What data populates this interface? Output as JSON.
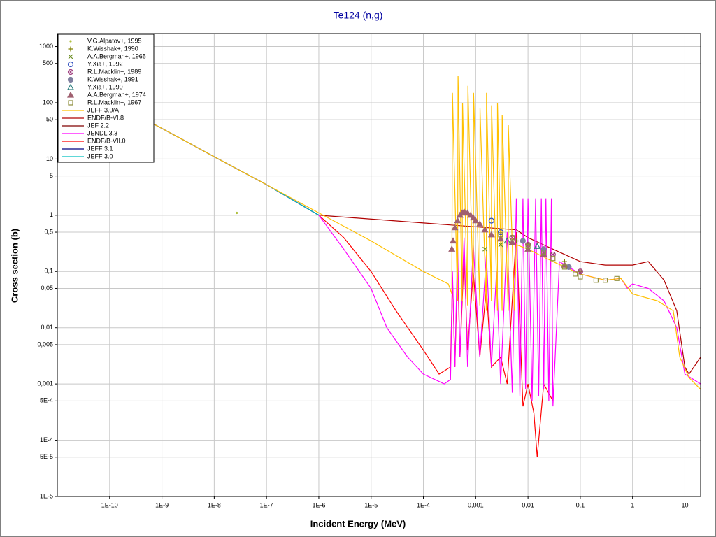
{
  "chart_data": {
    "type": "line",
    "title": "Te124 (n,g)",
    "x_label": "Incident Energy (MeV)",
    "y_label": "Cross section (b)",
    "xscale": "log",
    "yscale": "log",
    "grid": true,
    "legend": "upper left",
    "xlim": [
      1e-11,
      20
    ],
    "ylim": [
      1e-05,
      1700
    ],
    "xticks": [
      {
        "value": 1e-10,
        "label": "1E-10"
      },
      {
        "value": 1e-09,
        "label": "1E-9"
      },
      {
        "value": 1e-08,
        "label": "1E-8"
      },
      {
        "value": 1e-07,
        "label": "1E-7"
      },
      {
        "value": 1e-06,
        "label": "1E-6"
      },
      {
        "value": 1e-05,
        "label": "1E-5"
      },
      {
        "value": 0.0001,
        "label": "1E-4"
      },
      {
        "value": 0.001,
        "label": "0,001"
      },
      {
        "value": 0.01,
        "label": "0,01"
      },
      {
        "value": 0.1,
        "label": "0,1"
      },
      1,
      10
    ],
    "yticks": [
      1000,
      500,
      100,
      50,
      10,
      5,
      1,
      {
        "value": 0.5,
        "label": "0,5"
      },
      {
        "value": 0.1,
        "label": "0,1"
      },
      {
        "value": 0.05,
        "label": "0,05"
      },
      {
        "value": 0.01,
        "label": "0,01"
      },
      {
        "value": 0.005,
        "label": "0,005"
      },
      {
        "value": 0.001,
        "label": "0,001"
      },
      {
        "value": 0.0005,
        "label": "5E-4"
      },
      {
        "value": 0.0001,
        "label": "1E-4"
      },
      {
        "value": 5e-05,
        "label": "5E-5"
      },
      {
        "value": 1e-05,
        "label": "1E-5"
      }
    ],
    "series": [
      {
        "name": "V.G.Alpatov+, 1995",
        "color": "#b0c040",
        "marker": "dot",
        "x": [
          2.7e-08
        ],
        "values": [
          1.1
        ]
      },
      {
        "name": "K.Wisshak+, 1990",
        "color": "#808000",
        "marker": "plus",
        "x": [
          0.006,
          0.01,
          0.02,
          0.05,
          0.1
        ],
        "values": [
          0.35,
          0.3,
          0.25,
          0.15,
          0.1
        ]
      },
      {
        "name": "A.A.Bergman+, 1965",
        "color": "#6b8e23",
        "marker": "cross",
        "x": [
          0.0015,
          0.003,
          0.01,
          0.03
        ],
        "values": [
          0.25,
          0.3,
          0.3,
          0.2
        ]
      },
      {
        "name": "Y.Xia+, 1992",
        "color": "#3050c0",
        "marker": "circle",
        "x": [
          0.002,
          0.003
        ],
        "values": [
          0.8,
          0.5
        ]
      },
      {
        "name": "R.L.Macklin+, 1989",
        "color": "#a04080",
        "marker": "circle-x",
        "x": [
          0.005,
          0.01,
          0.03,
          0.1
        ],
        "values": [
          0.4,
          0.3,
          0.2,
          0.1
        ]
      },
      {
        "name": "K.Wisshak+, 1991",
        "color": "#8080a0",
        "marker": "filled-circle",
        "x": [
          0.008,
          0.02,
          0.06
        ],
        "values": [
          0.35,
          0.25,
          0.12
        ]
      },
      {
        "name": "Y.Xia+, 1990",
        "color": "#308080",
        "marker": "triangle",
        "x": [
          0.004,
          0.015
        ],
        "values": [
          0.35,
          0.28
        ]
      },
      {
        "name": "A.A.Bergman+, 1974",
        "color": "#a06070",
        "marker": "filled-triangle",
        "x": [
          0.00035,
          0.00037,
          0.0004,
          0.00045,
          0.0005,
          0.00055,
          0.0006,
          0.0007,
          0.0008,
          0.0009,
          0.001,
          0.0012,
          0.0015,
          0.002,
          0.003,
          0.005,
          0.01,
          0.02,
          0.05
        ],
        "values": [
          0.25,
          0.35,
          0.6,
          0.8,
          1.0,
          1.1,
          1.15,
          1.1,
          1.0,
          0.9,
          0.8,
          0.7,
          0.55,
          0.45,
          0.38,
          0.33,
          0.25,
          0.2,
          0.13
        ]
      },
      {
        "name": "R.L.Macklin+, 1967",
        "color": "#909040",
        "marker": "square",
        "x": [
          0.003,
          0.005,
          0.01,
          0.02,
          0.03,
          0.05,
          0.08,
          0.1,
          0.2,
          0.3,
          0.5
        ],
        "values": [
          0.45,
          0.4,
          0.28,
          0.22,
          0.17,
          0.12,
          0.09,
          0.08,
          0.07,
          0.07,
          0.075
        ]
      },
      {
        "name": "JEFF 3.0/A",
        "color": "#ffc000",
        "x": [
          4e-10,
          1e-09,
          1e-08,
          1e-07,
          1e-06,
          1e-05,
          0.0001,
          0.0003,
          0.00035,
          0.00036,
          0.00045,
          0.00046,
          0.00055,
          0.00056,
          0.0007,
          0.00071,
          0.0009,
          0.00091,
          0.0012,
          0.00121,
          0.0016,
          0.00161,
          0.002,
          0.00201,
          0.0026,
          0.00261,
          0.0032,
          0.00321,
          0.0042,
          0.00421,
          0.0055,
          0.006,
          0.01,
          0.03,
          0.1,
          0.3,
          0.6,
          1,
          3,
          6,
          8,
          12,
          20
        ],
        "values": [
          55,
          35,
          11,
          3.5,
          1.1,
          0.35,
          0.1,
          0.06,
          0.04,
          150,
          0.03,
          300,
          0.03,
          100,
          0.025,
          200,
          0.03,
          150,
          0.025,
          80,
          0.02,
          150,
          0.03,
          90,
          0.02,
          100,
          0.02,
          60,
          0.02,
          40,
          0.02,
          0.3,
          0.25,
          0.15,
          0.09,
          0.07,
          0.075,
          0.04,
          0.03,
          0.02,
          0.003,
          0.0013,
          0.0008
        ]
      },
      {
        "name": "ENDF/B-VI.8",
        "color": "#b00000",
        "x": [
          4e-10,
          1e-09,
          1e-08,
          1e-07,
          1e-06,
          0.006,
          0.01,
          0.03,
          0.1,
          0.3,
          1,
          2,
          4,
          7,
          10,
          12,
          20
        ],
        "values": [
          55,
          35,
          11,
          3.5,
          1.0,
          0.55,
          0.4,
          0.25,
          0.15,
          0.13,
          0.13,
          0.15,
          0.07,
          0.02,
          0.002,
          0.0015,
          0.003
        ]
      },
      {
        "name": "JEF 2.2",
        "color": "#800000",
        "x": [
          4e-10,
          1e-09,
          1e-08,
          1e-07,
          1e-06
        ],
        "values": [
          55,
          35,
          11,
          3.5,
          1.0
        ]
      },
      {
        "name": "JENDL 3.3",
        "color": "#ff00ff",
        "x": [
          4e-10,
          1e-09,
          1e-08,
          1e-07,
          1e-06,
          3e-06,
          1e-05,
          2e-05,
          5e-05,
          0.0001,
          0.00025,
          0.00033,
          0.00036,
          0.0004,
          0.00045,
          0.0005,
          0.0006,
          0.0007,
          0.0009,
          0.0012,
          0.0016,
          0.002,
          0.0025,
          0.003,
          0.004,
          0.005,
          0.006,
          0.007,
          0.008,
          0.009,
          0.01,
          0.012,
          0.014,
          0.016,
          0.018,
          0.02,
          0.022,
          0.025,
          0.028,
          0.03,
          0.04,
          0.1,
          0.3,
          0.6,
          0.8,
          1,
          2,
          4,
          7,
          10,
          20
        ],
        "values": [
          55,
          35,
          11,
          3.5,
          1.0,
          0.25,
          0.05,
          0.01,
          0.003,
          0.0015,
          0.001,
          0.0012,
          0.1,
          0.002,
          0.3,
          0.003,
          0.4,
          0.002,
          0.3,
          0.003,
          0.2,
          0.002,
          0.1,
          0.001,
          0.5,
          0.0007,
          2,
          0.0006,
          2,
          0.0008,
          2,
          0.0005,
          2,
          0.0006,
          2,
          0.0008,
          2,
          0.0005,
          2,
          0.0004,
          0.15,
          0.09,
          0.07,
          0.075,
          0.05,
          0.06,
          0.05,
          0.03,
          0.01,
          0.0015,
          0.001
        ]
      },
      {
        "name": "ENDF/B-VII.0",
        "color": "#ff0000",
        "x": [
          4e-10,
          1e-09,
          1e-08,
          1e-07,
          1e-06,
          3e-06,
          1e-05,
          3e-05,
          0.0001,
          0.0002,
          0.00033,
          0.00036,
          0.0004,
          0.00045,
          0.0005,
          0.0006,
          0.0007,
          0.0009,
          0.0012,
          0.0016,
          0.002,
          0.003,
          0.004,
          0.006,
          0.008,
          0.01,
          0.013,
          0.015,
          0.02,
          0.03
        ],
        "values": [
          55,
          35,
          11,
          3.5,
          1.0,
          0.4,
          0.1,
          0.02,
          0.004,
          0.0015,
          0.002,
          0.08,
          0.002,
          0.15,
          0.003,
          0.2,
          0.004,
          0.1,
          0.003,
          0.05,
          0.002,
          0.003,
          0.001,
          0.5,
          0.0004,
          0.001,
          0.0003,
          5e-05,
          0.001,
          0.0005
        ]
      },
      {
        "name": "JEFF 3.1",
        "color": "#000080",
        "x": [
          4e-10,
          1e-09,
          1e-08,
          1e-07,
          1e-06
        ],
        "values": [
          55,
          35,
          11,
          3.5,
          1.0
        ]
      },
      {
        "name": "JEFF 3.0",
        "color": "#00c0c0",
        "x": [
          4e-10,
          1e-09,
          1e-08,
          1e-07,
          1e-06
        ],
        "values": [
          55,
          35,
          11,
          3.5,
          1.0
        ]
      }
    ]
  }
}
